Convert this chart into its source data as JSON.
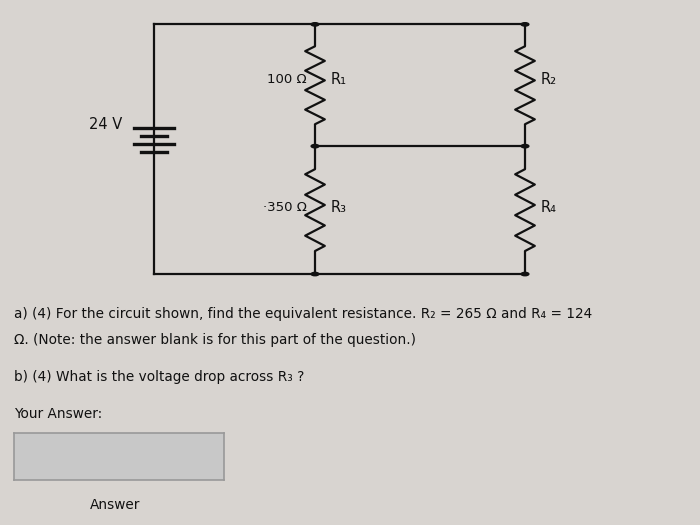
{
  "bg": "#d8d4d0",
  "cc": "#111111",
  "tc": "#111111",
  "voltage_label": "24 V",
  "q_a1": "a) (4) For the circuit shown, find the equivalent resistance. R₂ = 265 Ω and R₄ = 124",
  "q_a2": "Ω. (Note: the answer blank is for this part of the question.)",
  "q_b": "b) (4) What is the voltage drop across R₃ ?",
  "your_ans": "Your Answer:",
  "ans_btn": "Answer",
  "lw": 1.6,
  "dot_r": 0.055
}
